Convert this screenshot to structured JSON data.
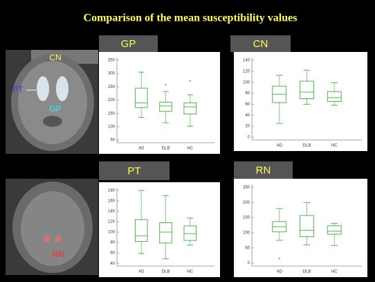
{
  "slide": {
    "title": "Comparison of the mean susceptibility values",
    "images": [
      {
        "labels": [
          {
            "text": "CN",
            "color": "#ffff5a"
          },
          {
            "text": "PT",
            "color": "#2f3cff"
          },
          {
            "text": "GP",
            "color": "#2ff0ff"
          }
        ]
      },
      {
        "labels": [
          {
            "text": "RN",
            "color": "#ff2a2a"
          }
        ]
      }
    ]
  },
  "chart_data": [
    {
      "type": "box",
      "title": "GP",
      "color": "#4db84d",
      "categories": [
        "AD",
        "DLB",
        "HC"
      ],
      "ylim": [
        40,
        360
      ],
      "yticks": [
        50,
        100,
        150,
        200,
        250,
        300,
        350
      ],
      "boxes": [
        {
          "min": 135,
          "q1": 172,
          "median": 190,
          "q3": 245,
          "max": 305,
          "outliers": []
        },
        {
          "min": 115,
          "q1": 158,
          "median": 178,
          "q3": 192,
          "max": 232,
          "outliers": [
            258
          ]
        },
        {
          "min": 102,
          "q1": 148,
          "median": 175,
          "q3": 190,
          "max": 220,
          "outliers": [
            272
          ]
        }
      ]
    },
    {
      "type": "box",
      "title": "CN",
      "color": "#4db84d",
      "categories": [
        "AD",
        "DLB",
        "HC"
      ],
      "ylim": [
        -5,
        145
      ],
      "yticks": [
        0,
        20,
        40,
        60,
        80,
        100,
        120,
        140
      ],
      "boxes": [
        {
          "min": 25,
          "q1": 63,
          "median": 78,
          "q3": 93,
          "max": 113,
          "outliers": []
        },
        {
          "min": 60,
          "q1": 70,
          "median": 82,
          "q3": 102,
          "max": 122,
          "outliers": []
        },
        {
          "min": 58,
          "q1": 65,
          "median": 72,
          "q3": 83,
          "max": 99,
          "outliers": []
        }
      ]
    },
    {
      "type": "box",
      "title": "PT",
      "color": "#4db84d",
      "categories": [
        "AD",
        "DLB",
        "HC"
      ],
      "ylim": [
        35,
        185
      ],
      "yticks": [
        40,
        60,
        80,
        100,
        120,
        140,
        160,
        180
      ],
      "boxes": [
        {
          "min": 59,
          "q1": 82,
          "median": 93,
          "q3": 124,
          "max": 180,
          "outliers": []
        },
        {
          "min": 49,
          "q1": 79,
          "median": 100,
          "q3": 118,
          "max": 170,
          "outliers": []
        },
        {
          "min": 75,
          "q1": 84,
          "median": 97,
          "q3": 112,
          "max": 127,
          "outliers": []
        }
      ]
    },
    {
      "type": "box",
      "title": "RN",
      "color": "#4db84d",
      "categories": [
        "AD",
        "DLB",
        "HC"
      ],
      "ylim": [
        -10,
        260
      ],
      "yticks": [
        0,
        50,
        100,
        150,
        200,
        250
      ],
      "boxes": [
        {
          "min": 75,
          "q1": 103,
          "median": 120,
          "q3": 137,
          "max": 180,
          "outliers": [
            15
          ]
        },
        {
          "min": 60,
          "q1": 87,
          "median": 108,
          "q3": 157,
          "max": 200,
          "outliers": []
        },
        {
          "min": 58,
          "q1": 95,
          "median": 105,
          "q3": 123,
          "max": 131,
          "outliers": []
        }
      ]
    }
  ]
}
